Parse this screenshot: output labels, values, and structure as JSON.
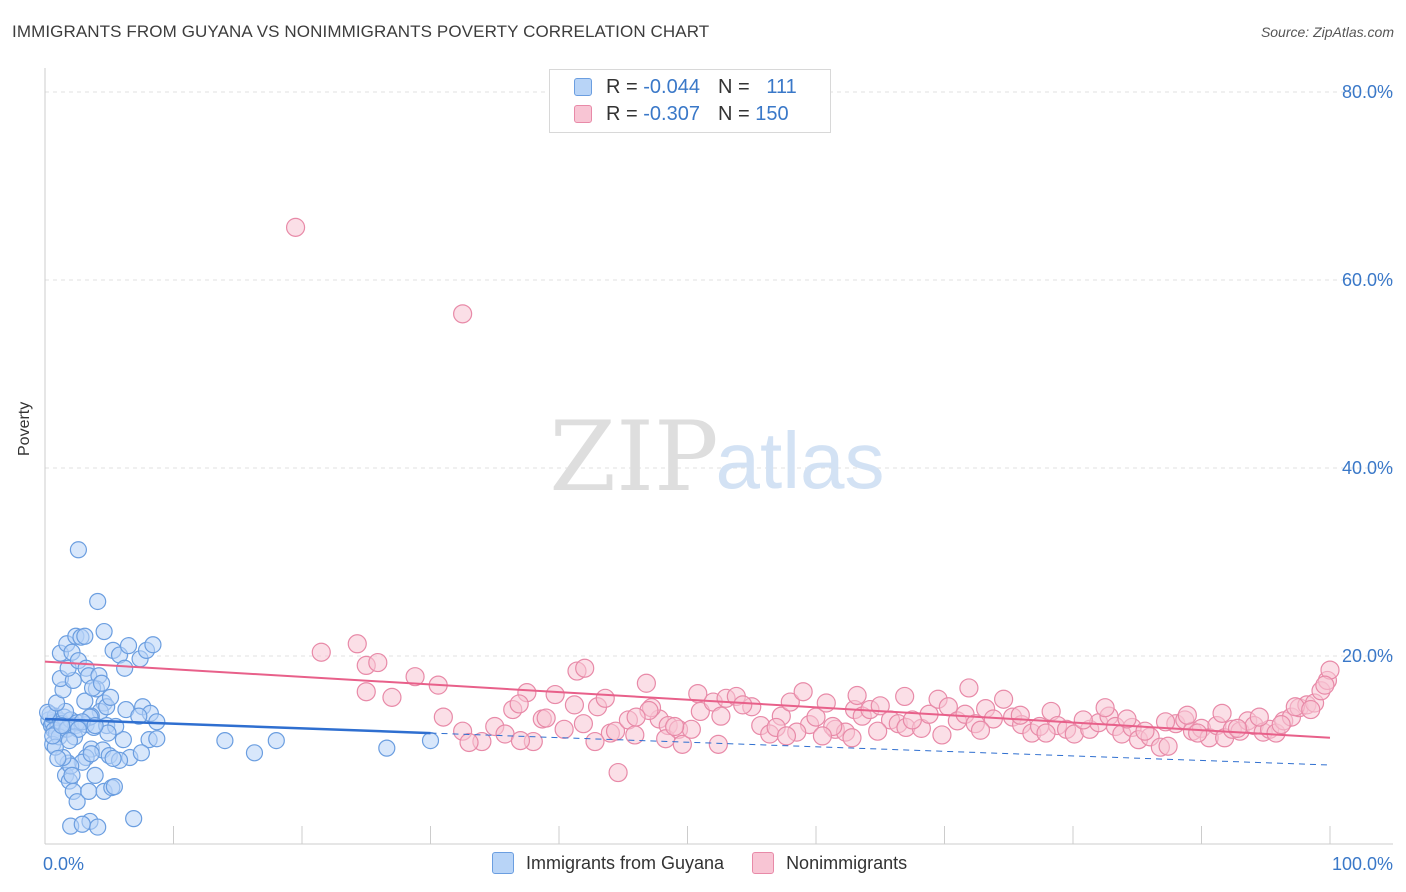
{
  "title": "IMMIGRANTS FROM GUYANA VS NONIMMIGRANTS POVERTY CORRELATION CHART",
  "source": "Source: ZipAtlas.com",
  "watermark": {
    "zip": "ZIP",
    "atlas": "atlas"
  },
  "legend": {
    "r_label": "R =",
    "n_label": "N =",
    "series1": {
      "r": "-0.044",
      "n": "111"
    },
    "series2": {
      "r": "-0.307",
      "n": "150"
    }
  },
  "chart_data": {
    "type": "scatter",
    "title": "IMMIGRANTS FROM GUYANA VS NONIMMIGRANTS POVERTY CORRELATION CHART",
    "xlabel": "",
    "ylabel": "Poverty",
    "xlim": [
      0,
      100
    ],
    "ylim": [
      0,
      83
    ],
    "x_tick_labels": [
      "0.0%",
      "100.0%"
    ],
    "y_ticks": [
      20,
      40,
      60,
      80
    ],
    "y_tick_labels": [
      "20.0%",
      "40.0%",
      "60.0%",
      "80.0%"
    ],
    "grid": true,
    "colors": {
      "series1": "#6b9ee0",
      "series1_fill": "#b8d4f7",
      "series1_line": "#2f6fd0",
      "series2": "#e88aa8",
      "series2_fill": "#f8c5d4",
      "series2_line": "#e8608a",
      "tick_label": "#3a78c8"
    },
    "series": [
      {
        "name": "Immigrants from Guyana",
        "r": -0.044,
        "n": 111,
        "trend": {
          "x0": 0,
          "y0": 13.3,
          "x1": 30,
          "y1": 11.8,
          "dash_x1": 100,
          "dash_y1": 8.4
        },
        "points": [
          [
            0.3,
            13.2
          ],
          [
            0.5,
            12.6
          ],
          [
            0.6,
            12.9
          ],
          [
            0.8,
            13.6
          ],
          [
            1.0,
            12.4
          ],
          [
            0.4,
            13.8
          ],
          [
            1.2,
            13.1
          ],
          [
            0.7,
            12.1
          ],
          [
            1.5,
            13.5
          ],
          [
            0.9,
            11.8
          ],
          [
            1.3,
            12.8
          ],
          [
            0.2,
            14.0
          ],
          [
            1.8,
            12.3
          ],
          [
            0.6,
            10.6
          ],
          [
            1.1,
            11.4
          ],
          [
            2.0,
            13.2
          ],
          [
            2.4,
            12.6
          ],
          [
            1.6,
            14.1
          ],
          [
            0.9,
            15.0
          ],
          [
            1.4,
            16.4
          ],
          [
            1.2,
            17.6
          ],
          [
            2.2,
            17.4
          ],
          [
            1.8,
            18.7
          ],
          [
            1.2,
            20.3
          ],
          [
            1.7,
            21.3
          ],
          [
            2.1,
            20.4
          ],
          [
            2.4,
            22.1
          ],
          [
            2.8,
            22.0
          ],
          [
            2.6,
            19.5
          ],
          [
            3.2,
            18.7
          ],
          [
            3.4,
            17.9
          ],
          [
            4.2,
            17.9
          ],
          [
            4.0,
            16.5
          ],
          [
            4.6,
            15.0
          ],
          [
            4.3,
            14.1
          ],
          [
            3.6,
            13.6
          ],
          [
            3.2,
            12.7
          ],
          [
            3.8,
            12.4
          ],
          [
            4.8,
            12.6
          ],
          [
            5.3,
            20.6
          ],
          [
            5.8,
            20.1
          ],
          [
            6.5,
            21.1
          ],
          [
            7.4,
            19.7
          ],
          [
            7.9,
            20.6
          ],
          [
            8.4,
            21.2
          ],
          [
            7.6,
            14.6
          ],
          [
            8.2,
            13.9
          ],
          [
            8.7,
            13.0
          ],
          [
            6.3,
            14.3
          ],
          [
            6.1,
            11.1
          ],
          [
            5.5,
            12.5
          ],
          [
            4.9,
            11.8
          ],
          [
            3.6,
            10.1
          ],
          [
            3.2,
            9.2
          ],
          [
            2.9,
            8.7
          ],
          [
            1.8,
            8.6
          ],
          [
            1.6,
            7.3
          ],
          [
            1.9,
            6.7
          ],
          [
            2.2,
            5.6
          ],
          [
            2.5,
            4.5
          ],
          [
            3.4,
            5.6
          ],
          [
            4.6,
            5.6
          ],
          [
            5.2,
            6.0
          ],
          [
            5.4,
            6.1
          ],
          [
            3.9,
            7.3
          ],
          [
            2.0,
            8.3
          ],
          [
            1.4,
            9.2
          ],
          [
            0.8,
            10.3
          ],
          [
            1.7,
            12.2
          ],
          [
            2.5,
            12.9
          ],
          [
            3.5,
            13.5
          ],
          [
            4.8,
            14.6
          ],
          [
            7.3,
            13.6
          ],
          [
            6.6,
            9.2
          ],
          [
            8.1,
            11.1
          ],
          [
            4.5,
            10.0
          ],
          [
            3.6,
            9.6
          ],
          [
            5.0,
            9.4
          ],
          [
            5.8,
            8.9
          ],
          [
            1.0,
            9.1
          ],
          [
            0.6,
            11.5
          ],
          [
            1.3,
            12.6
          ],
          [
            2.3,
            11.4
          ],
          [
            2.9,
            13.0
          ],
          [
            3.9,
            12.6
          ],
          [
            2.6,
            12.2
          ],
          [
            1.9,
            11.0
          ],
          [
            2.0,
            1.9
          ],
          [
            3.5,
            2.4
          ],
          [
            4.1,
            1.8
          ],
          [
            6.9,
            2.7
          ],
          [
            2.9,
            2.1
          ],
          [
            2.6,
            31.3
          ],
          [
            4.1,
            25.8
          ],
          [
            4.6,
            22.6
          ],
          [
            3.1,
            22.1
          ],
          [
            14.0,
            11.0
          ],
          [
            16.3,
            9.7
          ],
          [
            18.0,
            11.0
          ],
          [
            26.6,
            10.2
          ],
          [
            30.0,
            11.0
          ],
          [
            8.7,
            11.2
          ],
          [
            7.5,
            9.7
          ],
          [
            3.1,
            15.2
          ],
          [
            3.7,
            16.6
          ],
          [
            6.2,
            18.7
          ],
          [
            5.1,
            15.6
          ],
          [
            4.4,
            17.1
          ],
          [
            2.1,
            7.3
          ],
          [
            5.3,
            9.1
          ]
        ]
      },
      {
        "name": "Nonimmigrants",
        "r": -0.307,
        "n": 150,
        "trend": {
          "x0": 0,
          "y0": 19.4,
          "x1": 100,
          "y1": 11.3
        },
        "points": [
          [
            19.5,
            65.6
          ],
          [
            32.5,
            56.4
          ],
          [
            21.5,
            20.4
          ],
          [
            24.3,
            21.3
          ],
          [
            25.0,
            19.0
          ],
          [
            25.9,
            19.3
          ],
          [
            25.0,
            16.2
          ],
          [
            27.0,
            15.6
          ],
          [
            28.8,
            17.8
          ],
          [
            30.6,
            16.9
          ],
          [
            31.0,
            13.5
          ],
          [
            32.5,
            12.0
          ],
          [
            34.0,
            10.9
          ],
          [
            35.0,
            12.5
          ],
          [
            35.8,
            11.7
          ],
          [
            36.4,
            14.3
          ],
          [
            37.5,
            16.1
          ],
          [
            38.0,
            10.9
          ],
          [
            38.7,
            13.3
          ],
          [
            39.7,
            15.9
          ],
          [
            40.4,
            12.2
          ],
          [
            41.4,
            18.4
          ],
          [
            42.0,
            18.7
          ],
          [
            41.2,
            14.8
          ],
          [
            43.0,
            14.6
          ],
          [
            44.0,
            11.8
          ],
          [
            44.4,
            12.0
          ],
          [
            43.6,
            15.5
          ],
          [
            45.4,
            13.2
          ],
          [
            46.8,
            17.1
          ],
          [
            47.8,
            13.3
          ],
          [
            47.2,
            14.5
          ],
          [
            48.5,
            12.6
          ],
          [
            48.3,
            11.2
          ],
          [
            49.3,
            12.2
          ],
          [
            49.6,
            10.6
          ],
          [
            50.3,
            12.2
          ],
          [
            51.0,
            14.1
          ],
          [
            52.0,
            15.1
          ],
          [
            52.6,
            13.6
          ],
          [
            53.0,
            15.5
          ],
          [
            53.8,
            15.7
          ],
          [
            55.0,
            14.6
          ],
          [
            55.7,
            12.6
          ],
          [
            56.4,
            11.7
          ],
          [
            57.3,
            13.6
          ],
          [
            58.0,
            15.1
          ],
          [
            59.5,
            12.7
          ],
          [
            60.0,
            13.5
          ],
          [
            60.8,
            15.0
          ],
          [
            61.5,
            12.2
          ],
          [
            62.3,
            11.9
          ],
          [
            63.0,
            14.3
          ],
          [
            63.6,
            13.6
          ],
          [
            64.2,
            14.3
          ],
          [
            65.0,
            14.7
          ],
          [
            65.8,
            13.2
          ],
          [
            66.4,
            12.8
          ],
          [
            67.0,
            12.4
          ],
          [
            68.2,
            12.3
          ],
          [
            68.8,
            13.8
          ],
          [
            69.5,
            15.4
          ],
          [
            70.3,
            14.6
          ],
          [
            71.0,
            13.1
          ],
          [
            71.6,
            13.8
          ],
          [
            72.4,
            12.8
          ],
          [
            73.2,
            14.4
          ],
          [
            73.8,
            13.3
          ],
          [
            74.6,
            15.4
          ],
          [
            75.3,
            13.5
          ],
          [
            76.0,
            12.7
          ],
          [
            76.8,
            11.8
          ],
          [
            77.4,
            12.5
          ],
          [
            78.3,
            14.1
          ],
          [
            78.8,
            12.6
          ],
          [
            79.5,
            12.2
          ],
          [
            80.1,
            11.7
          ],
          [
            81.3,
            12.2
          ],
          [
            82.0,
            12.9
          ],
          [
            82.8,
            13.6
          ],
          [
            83.3,
            12.5
          ],
          [
            83.8,
            11.7
          ],
          [
            84.6,
            12.4
          ],
          [
            85.1,
            11.1
          ],
          [
            86.0,
            11.4
          ],
          [
            86.8,
            10.3
          ],
          [
            87.4,
            10.4
          ],
          [
            88.0,
            12.8
          ],
          [
            88.7,
            13.2
          ],
          [
            89.3,
            12.0
          ],
          [
            90.0,
            12.3
          ],
          [
            90.6,
            11.3
          ],
          [
            91.2,
            12.6
          ],
          [
            91.8,
            11.3
          ],
          [
            92.4,
            12.2
          ],
          [
            93.0,
            12.0
          ],
          [
            93.6,
            13.1
          ],
          [
            94.1,
            12.6
          ],
          [
            94.8,
            11.9
          ],
          [
            95.3,
            12.2
          ],
          [
            95.8,
            11.8
          ],
          [
            96.4,
            13.1
          ],
          [
            97.0,
            13.5
          ],
          [
            97.6,
            14.5
          ],
          [
            98.2,
            14.8
          ],
          [
            98.8,
            15.0
          ],
          [
            99.3,
            16.3
          ],
          [
            99.8,
            17.4
          ],
          [
            100.0,
            18.5
          ],
          [
            59.0,
            16.2
          ],
          [
            63.2,
            15.8
          ],
          [
            66.9,
            15.7
          ],
          [
            71.9,
            16.6
          ],
          [
            39.0,
            13.4
          ],
          [
            41.9,
            12.8
          ],
          [
            45.9,
            11.6
          ],
          [
            47.0,
            14.2
          ],
          [
            50.8,
            16.0
          ],
          [
            54.3,
            14.8
          ],
          [
            56.9,
            12.4
          ],
          [
            58.5,
            11.9
          ],
          [
            61.3,
            12.5
          ],
          [
            64.8,
            12.0
          ],
          [
            67.5,
            13.2
          ],
          [
            69.8,
            11.6
          ],
          [
            72.8,
            12.1
          ],
          [
            75.9,
            13.7
          ],
          [
            77.9,
            11.8
          ],
          [
            80.8,
            13.2
          ],
          [
            82.5,
            14.5
          ],
          [
            84.2,
            13.3
          ],
          [
            85.6,
            12.0
          ],
          [
            87.2,
            13.0
          ],
          [
            88.9,
            13.7
          ],
          [
            89.7,
            11.8
          ],
          [
            91.6,
            13.9
          ],
          [
            92.8,
            12.3
          ],
          [
            94.5,
            13.5
          ],
          [
            96.2,
            12.7
          ],
          [
            97.3,
            14.6
          ],
          [
            98.5,
            14.3
          ],
          [
            99.6,
            16.9
          ],
          [
            37.0,
            11.0
          ],
          [
            42.8,
            10.9
          ],
          [
            46.0,
            13.5
          ],
          [
            49.0,
            12.5
          ],
          [
            52.4,
            10.6
          ],
          [
            57.7,
            11.5
          ],
          [
            60.5,
            11.5
          ],
          [
            62.8,
            11.3
          ],
          [
            44.6,
            7.6
          ],
          [
            33.0,
            10.8
          ],
          [
            36.9,
            14.9
          ]
        ]
      }
    ]
  },
  "legend_bottom": {
    "series1": "Immigrants from Guyana",
    "series2": "Nonimmigrants"
  }
}
